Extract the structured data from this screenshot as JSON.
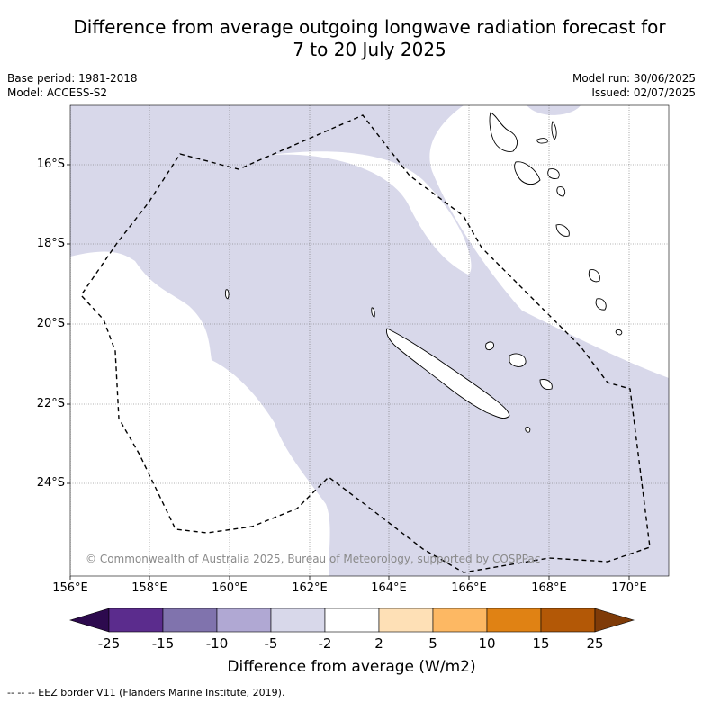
{
  "title": {
    "line1": "Difference from average outgoing longwave radiation forecast for",
    "line2": "7 to 20 July 2025"
  },
  "meta": {
    "base_period": "Base period: 1981-2018",
    "model": "Model: ACCESS-S2",
    "model_run": "Model run: 30/06/2025",
    "issued": "Issued: 02/07/2025"
  },
  "map": {
    "lat_labels": [
      "16°S",
      "18°S",
      "20°S",
      "22°S",
      "24°S"
    ],
    "lon_labels": [
      "156°E",
      "158°E",
      "160°E",
      "162°E",
      "164°E",
      "166°E",
      "168°E",
      "170°E"
    ],
    "copyright": "© Commonwealth of Australia 2025, Bureau of Meteorology, supported by COSPPac",
    "colors": {
      "anomaly_-5_-2": "#d8d8ea",
      "neutral": "#ffffff",
      "eez_border": "#000000"
    }
  },
  "colorbar": {
    "ticks": [
      "-25",
      "-15",
      "-10",
      "-5",
      "-2",
      "2",
      "5",
      "10",
      "15",
      "25"
    ],
    "colors": [
      "#2d0a4e",
      "#5b2c8d",
      "#8073ad",
      "#b0a8d3",
      "#d8d8ea",
      "#ffffff",
      "#fee0b6",
      "#fdb863",
      "#e08214",
      "#b35806",
      "#7f3b08"
    ],
    "label": "Difference from average (W/m2)"
  },
  "footnote": "--  --  -- EEZ border V11 (Flanders Marine Institute, 2019)."
}
